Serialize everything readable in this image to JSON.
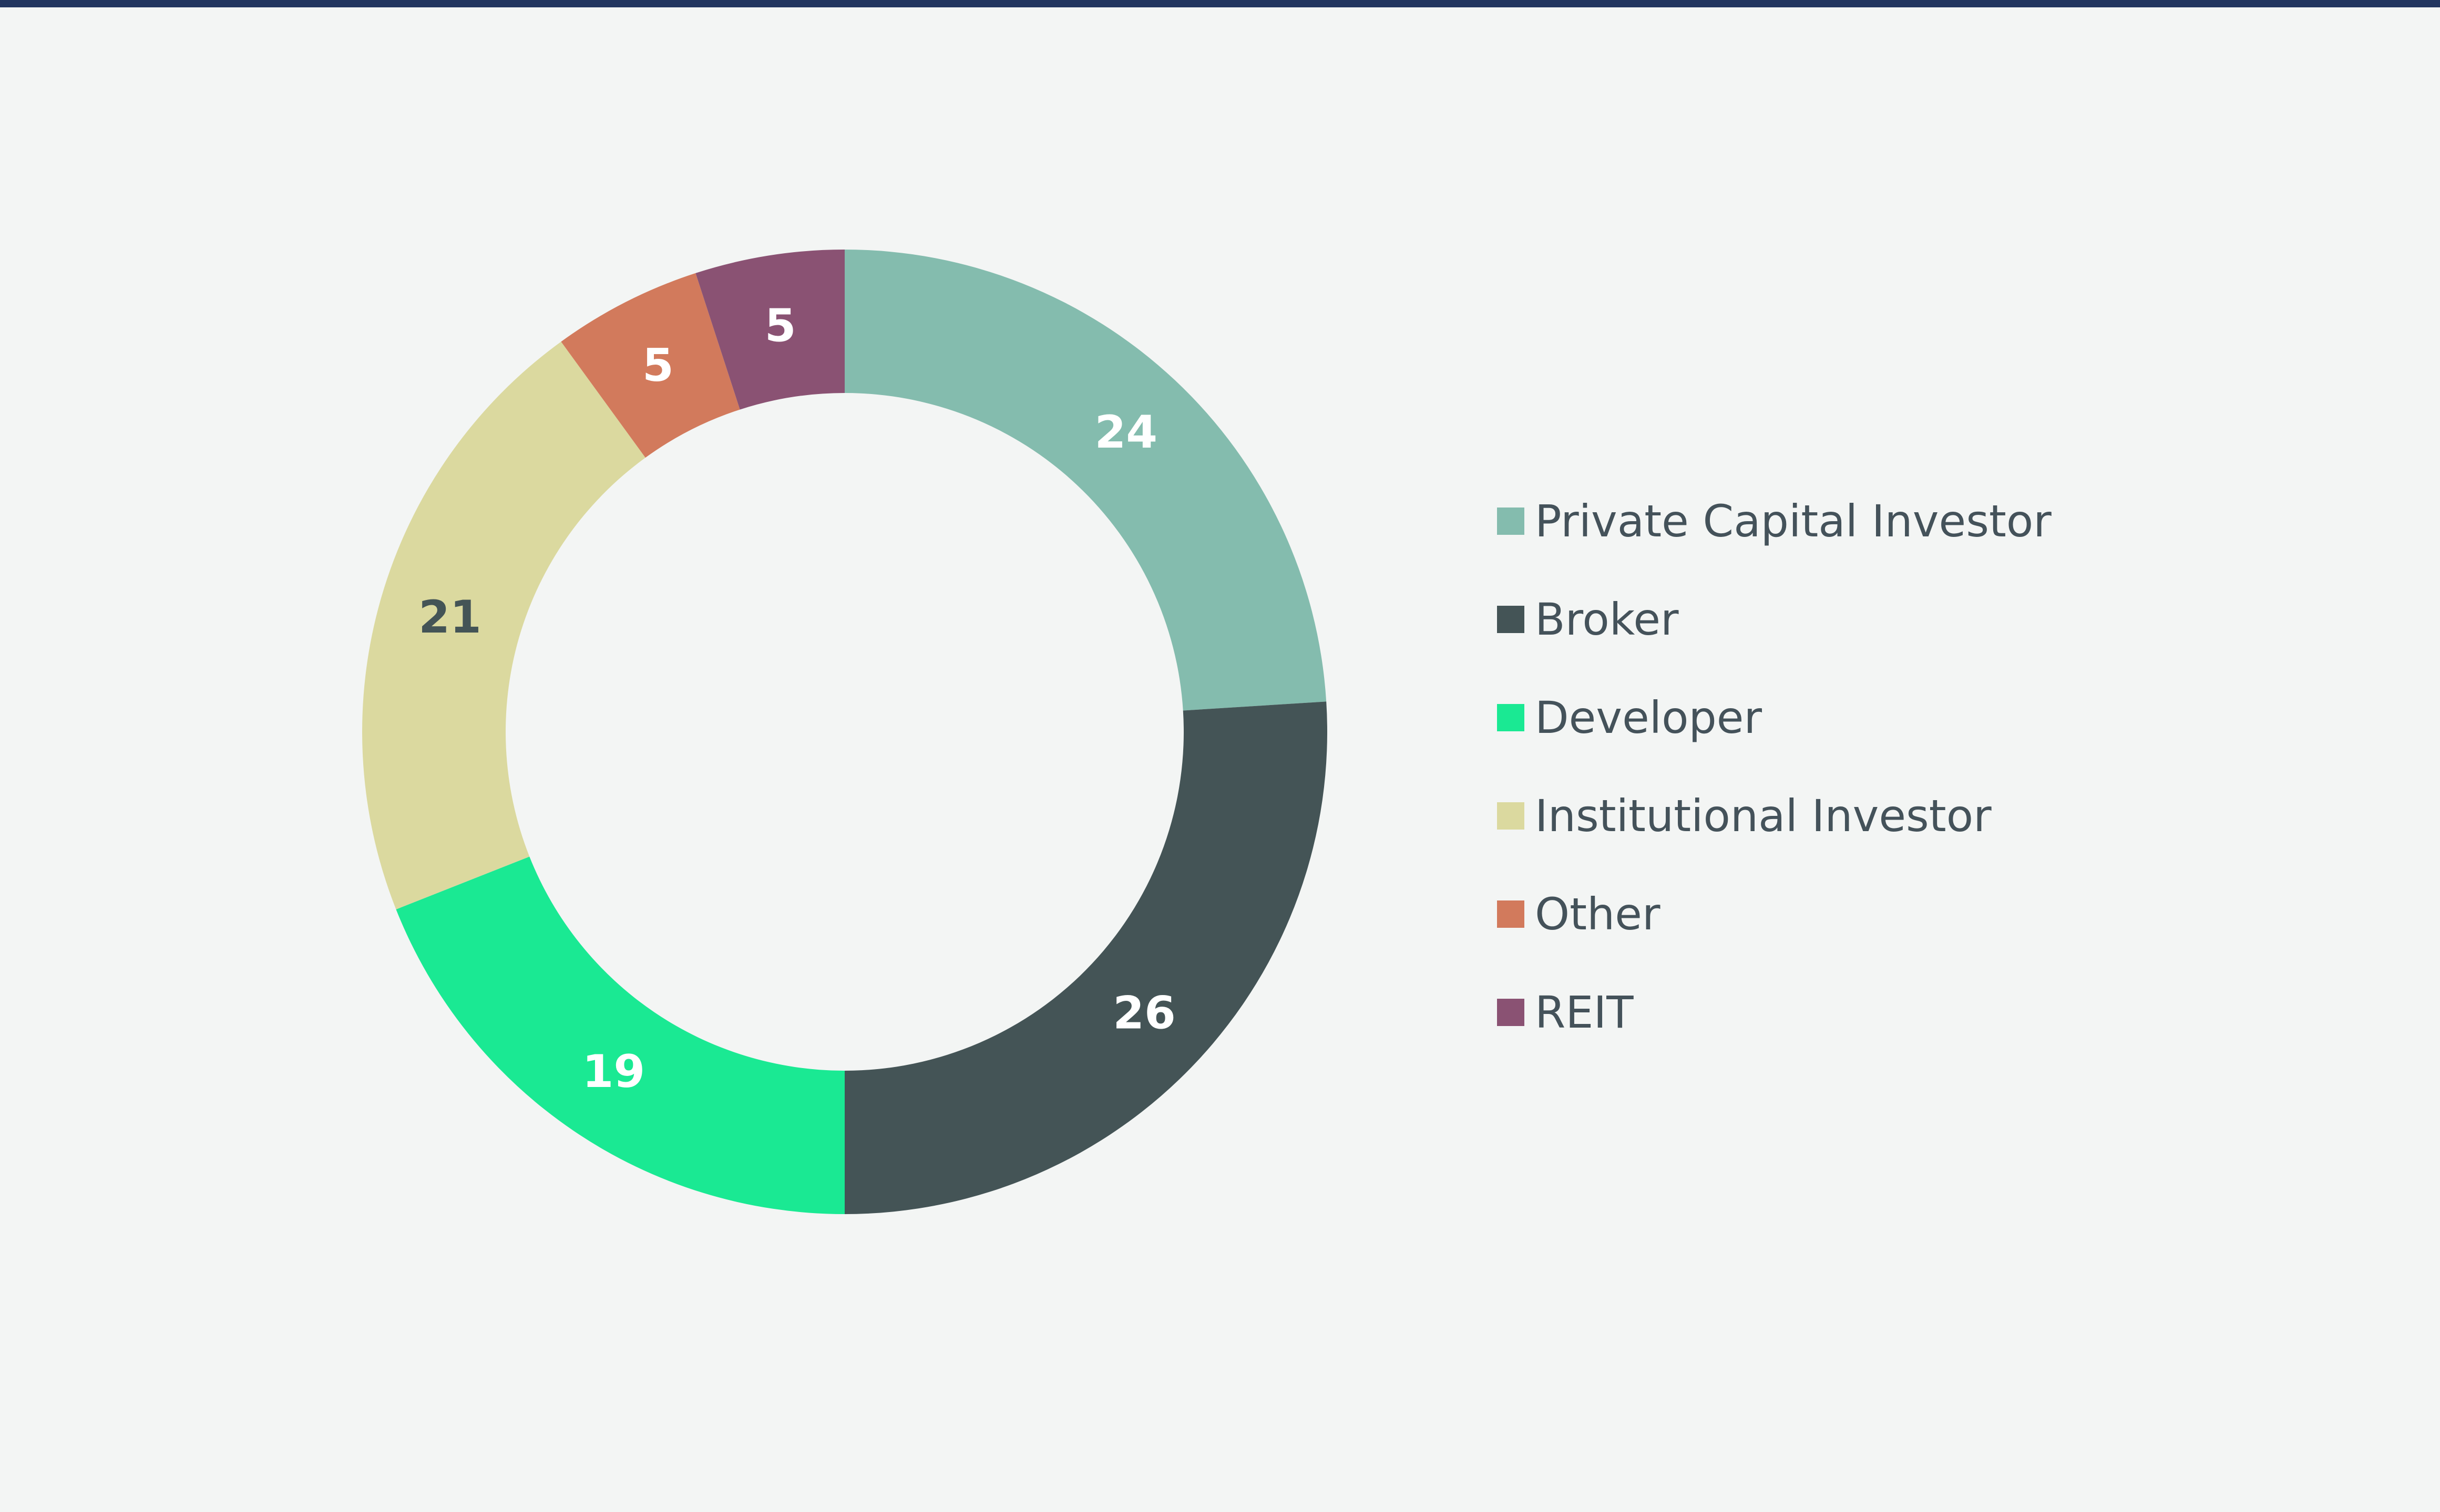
{
  "page": {
    "rule_color": "#22355f",
    "background": "#f3f5f4"
  },
  "chart_data": {
    "type": "pie",
    "variant": "donut",
    "title": "",
    "start_angle_deg": 0,
    "direction": "clockwise",
    "legend_position": "right",
    "slices": [
      {
        "label": "Private Capital Investor",
        "value": 24,
        "color": "#84bcae",
        "value_label_color": "#ffffff"
      },
      {
        "label": "Broker",
        "value": 26,
        "color": "#445456",
        "value_label_color": "#ffffff"
      },
      {
        "label": "Developer",
        "value": 19,
        "color": "#1ae993",
        "value_label_color": "#ffffff"
      },
      {
        "label": "Institutional Investor",
        "value": 21,
        "color": "#dbd99f",
        "value_label_color": "#445456"
      },
      {
        "label": "Other",
        "value": 5,
        "color": "#d27a5c",
        "value_label_color": "#ffffff"
      },
      {
        "label": "REIT",
        "value": 5,
        "color": "#8a5273",
        "value_label_color": "#ffffff"
      }
    ]
  }
}
